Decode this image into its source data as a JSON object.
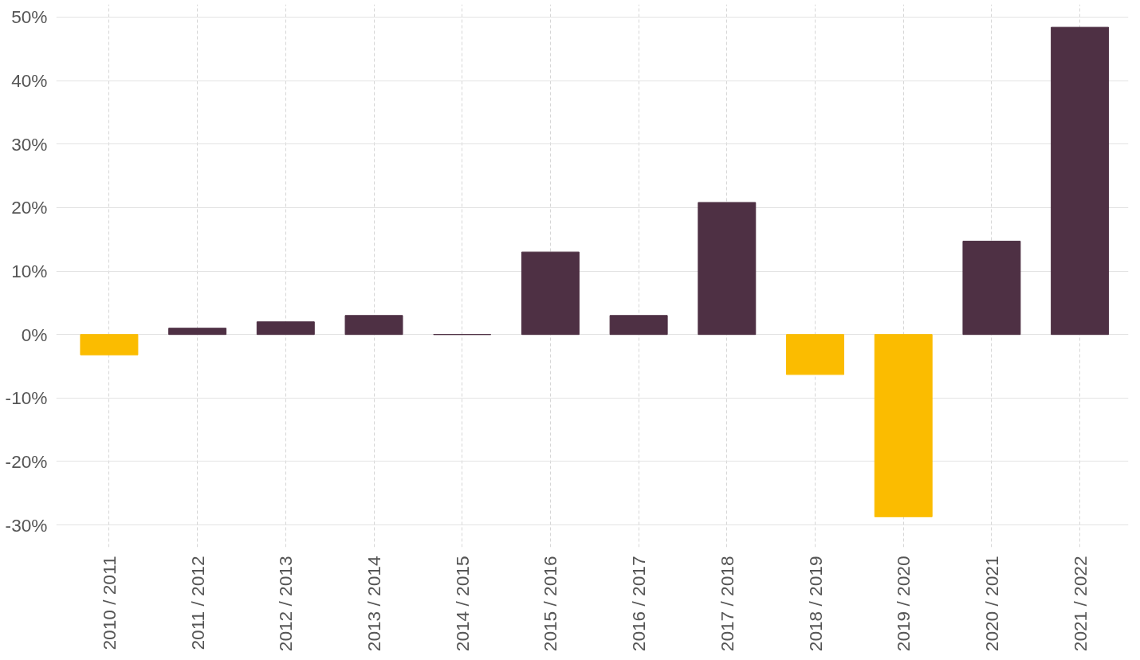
{
  "chart_data": {
    "type": "bar",
    "categories": [
      "2010 / 2011",
      "2011 / 2012",
      "2012 / 2013",
      "2013 / 2014",
      "2014 / 2015",
      "2015 / 2016",
      "2016 / 2017",
      "2017 / 2018",
      "2018 / 2019",
      "2019 / 2020",
      "2020 / 2021",
      "2021 / 2022"
    ],
    "values": [
      -3.2,
      1,
      2,
      3,
      0,
      13,
      3,
      20.8,
      -6.3,
      -28.7,
      14.7,
      48.4
    ],
    "colors": [
      "#fbbc00",
      "#4e3044",
      "#4e3044",
      "#4e3044",
      "#4e3044",
      "#4e3044",
      "#4e3044",
      "#4e3044",
      "#fbbc00",
      "#fbbc00",
      "#4e3044",
      "#4e3044"
    ],
    "ylim": [
      -33.5,
      52
    ],
    "yticks": [
      {
        "value": -30,
        "label": "-30%"
      },
      {
        "value": -20,
        "label": "-20%"
      },
      {
        "value": -10,
        "label": "-10%"
      },
      {
        "value": 0,
        "label": "0%"
      },
      {
        "value": 10,
        "label": "10%"
      },
      {
        "value": 20,
        "label": "20%"
      },
      {
        "value": 30,
        "label": "30%"
      },
      {
        "value": 40,
        "label": "40%"
      },
      {
        "value": 50,
        "label": "50%"
      }
    ],
    "grid": true
  }
}
